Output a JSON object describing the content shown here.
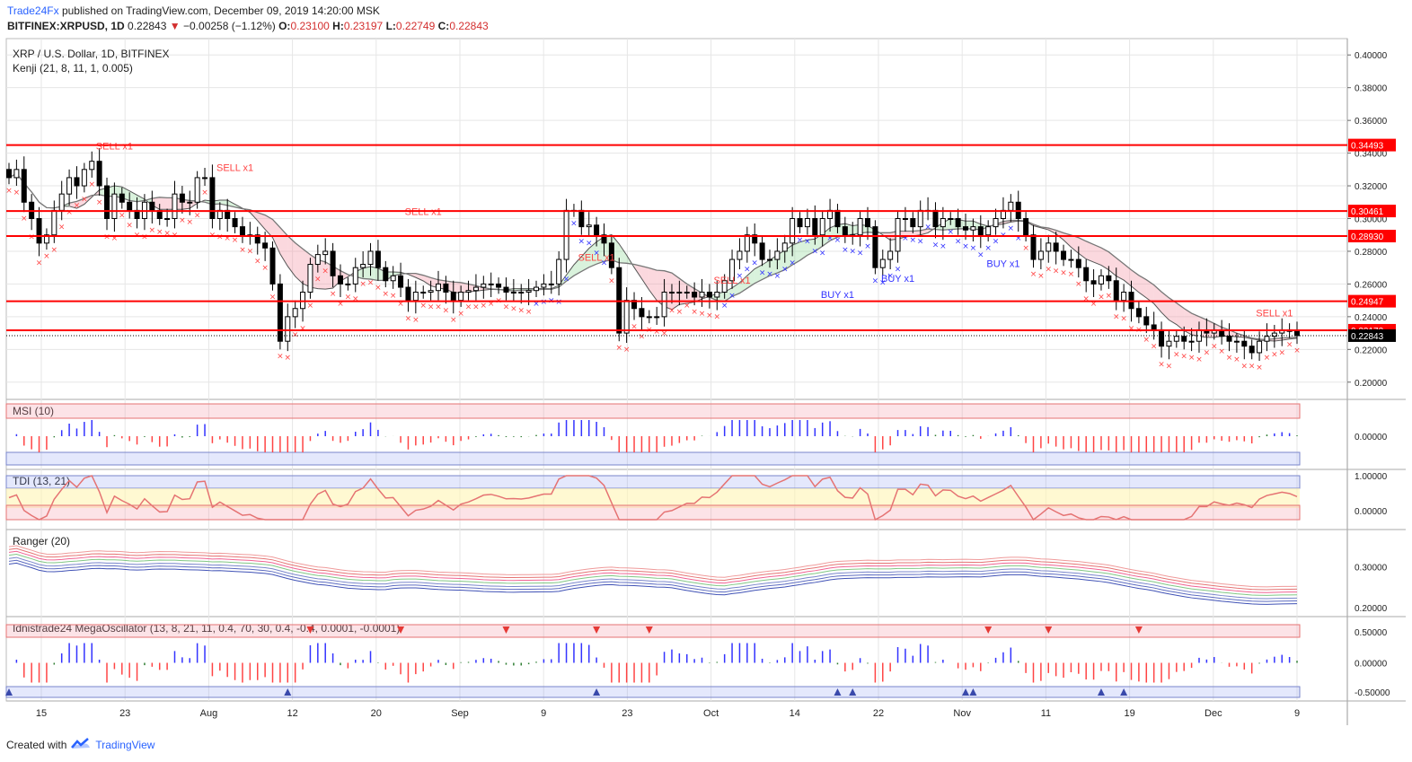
{
  "header": {
    "publisher": "Trade24Fx",
    "published_text": "published on TradingView.com, December 09, 2019 14:20:00 MSK",
    "symbol": "BITFINEX:XRPUSD, 1D",
    "last": "0.22843",
    "change": "−0.00258 (−1.12%)",
    "open_label": "O:",
    "open": "0.23100",
    "high_label": "H:",
    "high": "0.23197",
    "low_label": "L:",
    "low": "0.22749",
    "close_label": "C:",
    "close": "0.22843"
  },
  "main_pane": {
    "title": "XRP / U.S. Dollar, 1D, BITFINEX",
    "indicator": "Kenji (21, 8, 11, 1, 0.005)"
  },
  "footer": {
    "created_with": "Created with",
    "brand": "TradingView"
  },
  "colors": {
    "up": "#ffffff",
    "down": "#000000",
    "level": "#ff0000",
    "buy": "#3333ff",
    "sell": "#ff4444",
    "grid": "#e6e6e6"
  },
  "chart_data": [
    {
      "type": "candlestick",
      "pane": "price",
      "ylim": [
        0.19,
        0.41
      ],
      "y_ticks": [
        "0.40000",
        "0.38000",
        "0.36000",
        "0.34000",
        "0.32000",
        "0.30000",
        "0.28000",
        "0.26000",
        "0.24000",
        "0.22000",
        "0.20000"
      ],
      "x_ticks": [
        "15",
        "23",
        "Aug",
        "12",
        "20",
        "Sep",
        "9",
        "23",
        "Oct",
        "14",
        "22",
        "Nov",
        "11",
        "19",
        "Dec",
        "9"
      ],
      "levels": [
        {
          "value": 0.34493,
          "label": "0.34493"
        },
        {
          "value": 0.30461,
          "label": "0.30461"
        },
        {
          "value": 0.2893,
          "label": "0.28930"
        },
        {
          "value": 0.24947,
          "label": "0.24947"
        },
        {
          "value": 0.23172,
          "label": "0.23172"
        }
      ],
      "last_price": {
        "value": 0.22843,
        "label": "0.22843"
      },
      "close_approx": [
        0.325,
        0.33,
        0.31,
        0.3,
        0.285,
        0.29,
        0.305,
        0.315,
        0.325,
        0.32,
        0.33,
        0.335,
        0.32,
        0.3,
        0.315,
        0.31,
        0.305,
        0.3,
        0.31,
        0.305,
        0.3,
        0.3,
        0.315,
        0.31,
        0.31,
        0.325,
        0.325,
        0.3,
        0.305,
        0.3,
        0.295,
        0.29,
        0.29,
        0.285,
        0.282,
        0.26,
        0.225,
        0.24,
        0.245,
        0.255,
        0.272,
        0.278,
        0.28,
        0.265,
        0.26,
        0.26,
        0.27,
        0.272,
        0.28,
        0.27,
        0.262,
        0.265,
        0.258,
        0.25,
        0.255,
        0.255,
        0.256,
        0.26,
        0.255,
        0.25,
        0.255,
        0.256,
        0.258,
        0.26,
        0.26,
        0.258,
        0.255,
        0.255,
        0.255,
        0.256,
        0.258,
        0.26,
        0.26,
        0.275,
        0.305,
        0.305,
        0.295,
        0.296,
        0.29,
        0.285,
        0.27,
        0.23,
        0.25,
        0.245,
        0.24,
        0.24,
        0.24,
        0.255,
        0.255,
        0.255,
        0.255,
        0.252,
        0.255,
        0.252,
        0.255,
        0.262,
        0.275,
        0.28,
        0.29,
        0.285,
        0.275,
        0.275,
        0.28,
        0.285,
        0.3,
        0.295,
        0.3,
        0.29,
        0.3,
        0.305,
        0.295,
        0.29,
        0.29,
        0.3,
        0.295,
        0.27,
        0.275,
        0.28,
        0.3,
        0.3,
        0.295,
        0.305,
        0.305,
        0.295,
        0.3,
        0.3,
        0.295,
        0.293,
        0.295,
        0.29,
        0.295,
        0.3,
        0.305,
        0.31,
        0.3,
        0.29,
        0.275,
        0.28,
        0.285,
        0.28,
        0.275,
        0.275,
        0.27,
        0.262,
        0.26,
        0.265,
        0.262,
        0.25,
        0.255,
        0.245,
        0.24,
        0.235,
        0.232,
        0.222,
        0.225,
        0.228,
        0.225,
        0.225,
        0.232,
        0.23,
        0.232,
        0.228,
        0.225,
        0.225,
        0.222,
        0.218,
        0.225,
        0.228,
        0.23,
        0.232,
        0.231,
        0.22843
      ],
      "signals": [
        {
          "text": "SELL x1",
          "side": "sell",
          "near": 0.34
        },
        {
          "text": "SELL x1",
          "side": "sell",
          "near": 0.327
        },
        {
          "text": "SELL x1",
          "side": "sell",
          "near": 0.3
        },
        {
          "text": "SELL x1",
          "side": "sell",
          "near": 0.272
        },
        {
          "text": "SELL x1",
          "side": "sell",
          "near": 0.258
        },
        {
          "text": "BUY x1",
          "side": "buy",
          "near": 0.258
        },
        {
          "text": "BUY x1",
          "side": "buy",
          "near": 0.268
        },
        {
          "text": "BUY x1",
          "side": "buy",
          "near": 0.277
        },
        {
          "text": "SELL x1",
          "side": "sell",
          "near": 0.238
        }
      ]
    },
    {
      "type": "histogram",
      "pane": "msi",
      "title": "MSI (10)",
      "y_ticks": [
        "0.00000"
      ]
    },
    {
      "type": "line",
      "pane": "tdi",
      "title": "TDI (13, 21)",
      "y_ticks": [
        "1.00000",
        "0.00000"
      ]
    },
    {
      "type": "line",
      "pane": "ranger",
      "title": "Ranger (20)",
      "y_ticks": [
        "0.30000",
        "0.20000"
      ]
    },
    {
      "type": "histogram",
      "pane": "mega",
      "title": "Idnistrade24 MegaOscillator (13, 8, 21, 11, 0.4, 70, 30, 0.4, -0.4, 0.0001, -0.0001)",
      "y_ticks": [
        "0.50000",
        "0.00000",
        "-0.50000"
      ]
    }
  ]
}
